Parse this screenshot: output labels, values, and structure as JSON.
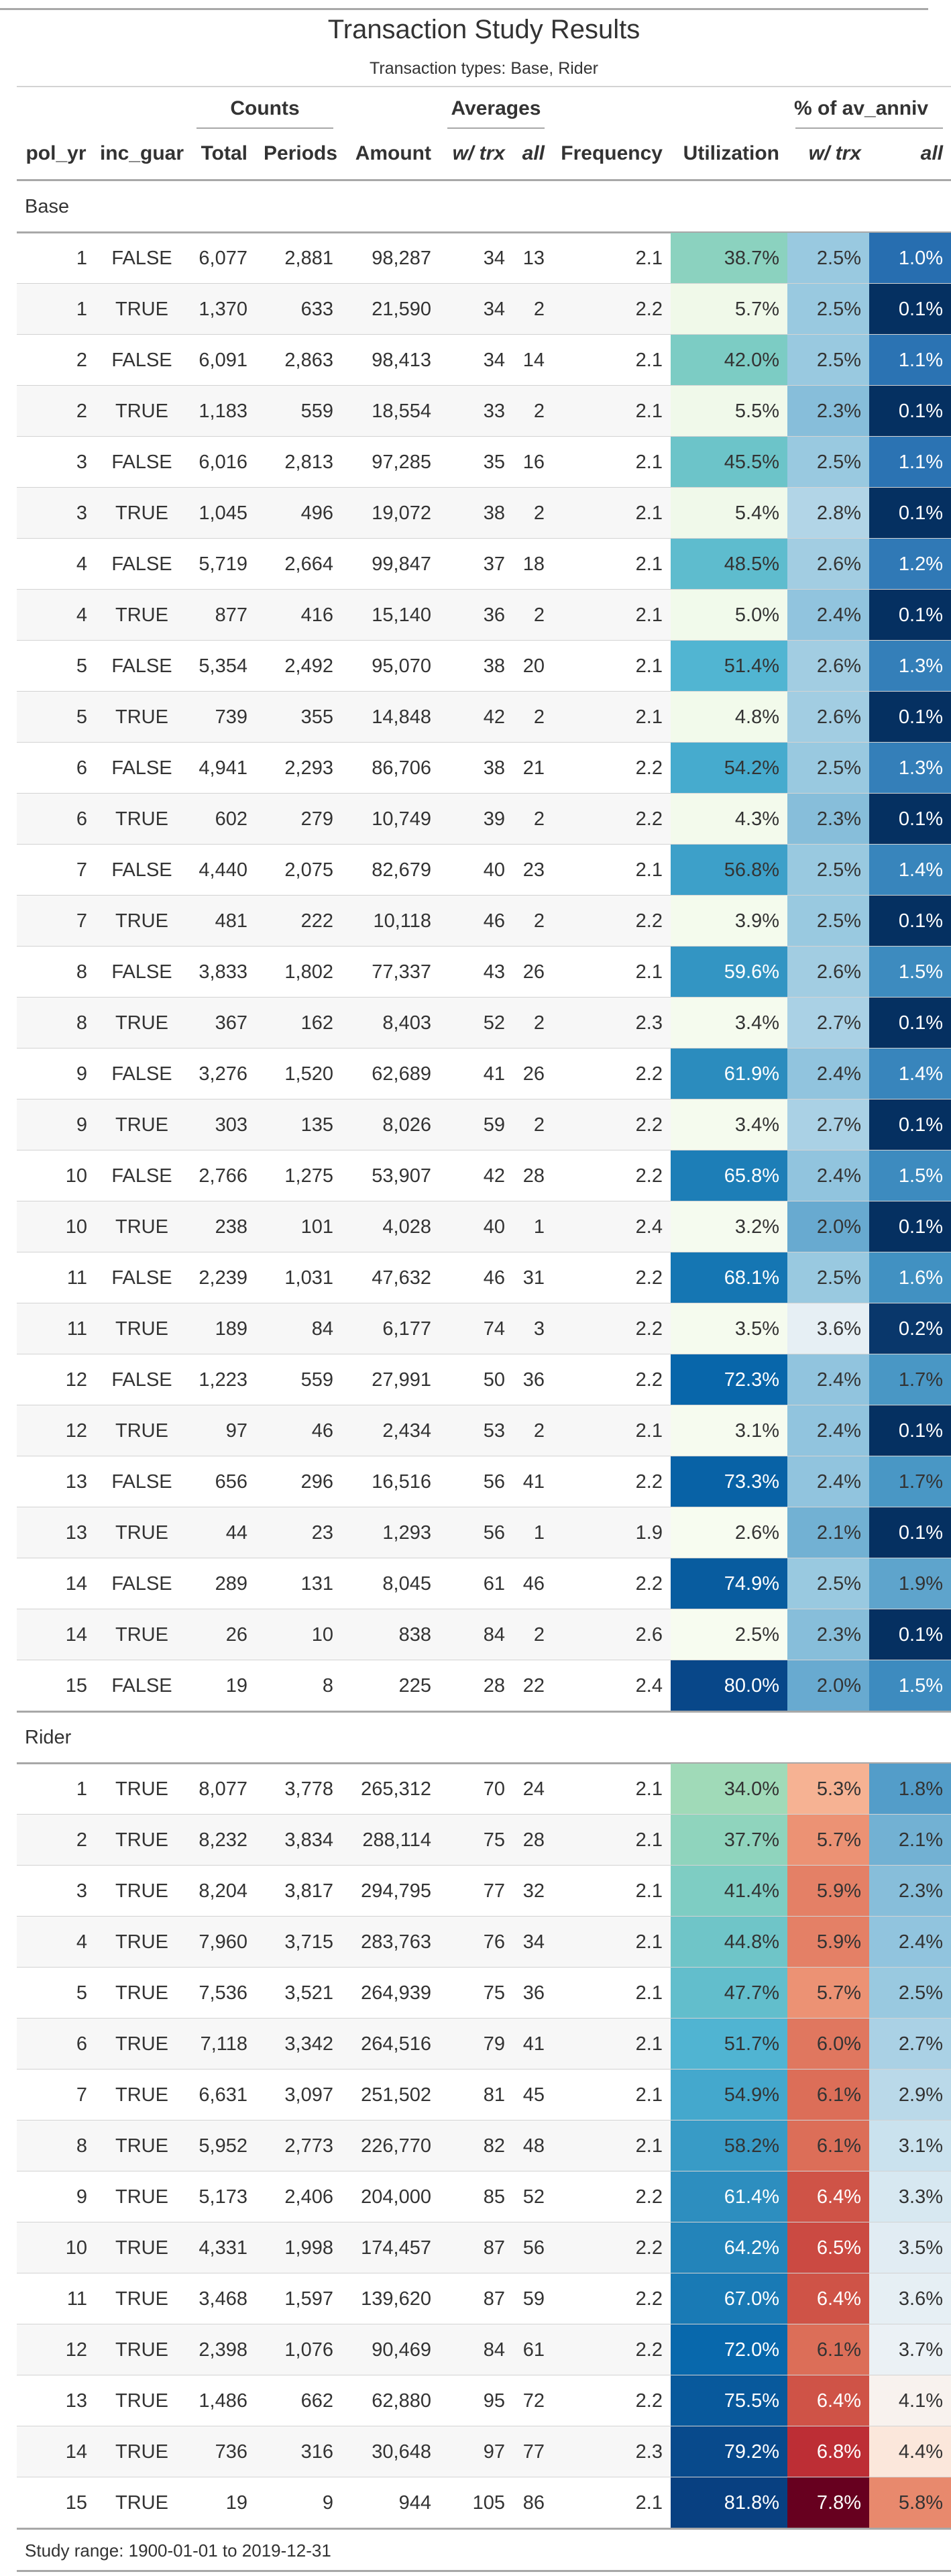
{
  "header": {
    "title": "Transaction Study Results",
    "subtitle": "Transaction types: Base, Rider"
  },
  "spanners": [
    "Counts",
    "Averages",
    "% of av_anniv"
  ],
  "columns": [
    "pol_yr",
    "inc_guar",
    "Total",
    "Periods",
    "Amount",
    "w/ trx",
    "all",
    "Frequency",
    "Utilization",
    "w/ trx",
    "all"
  ],
  "groups": [
    {
      "label": "Base",
      "rows": [
        [
          "1",
          "FALSE",
          "6,077",
          "2,881",
          "98,287",
          "34",
          "13",
          "2.1",
          "38.7%",
          "2.5%",
          "1.0%"
        ],
        [
          "1",
          "TRUE",
          "1,370",
          "633",
          "21,590",
          "34",
          "2",
          "2.2",
          "5.7%",
          "2.5%",
          "0.1%"
        ],
        [
          "2",
          "FALSE",
          "6,091",
          "2,863",
          "98,413",
          "34",
          "14",
          "2.1",
          "42.0%",
          "2.5%",
          "1.1%"
        ],
        [
          "2",
          "TRUE",
          "1,183",
          "559",
          "18,554",
          "33",
          "2",
          "2.1",
          "5.5%",
          "2.3%",
          "0.1%"
        ],
        [
          "3",
          "FALSE",
          "6,016",
          "2,813",
          "97,285",
          "35",
          "16",
          "2.1",
          "45.5%",
          "2.5%",
          "1.1%"
        ],
        [
          "3",
          "TRUE",
          "1,045",
          "496",
          "19,072",
          "38",
          "2",
          "2.1",
          "5.4%",
          "2.8%",
          "0.1%"
        ],
        [
          "4",
          "FALSE",
          "5,719",
          "2,664",
          "99,847",
          "37",
          "18",
          "2.1",
          "48.5%",
          "2.6%",
          "1.2%"
        ],
        [
          "4",
          "TRUE",
          "877",
          "416",
          "15,140",
          "36",
          "2",
          "2.1",
          "5.0%",
          "2.4%",
          "0.1%"
        ],
        [
          "5",
          "FALSE",
          "5,354",
          "2,492",
          "95,070",
          "38",
          "20",
          "2.1",
          "51.4%",
          "2.6%",
          "1.3%"
        ],
        [
          "5",
          "TRUE",
          "739",
          "355",
          "14,848",
          "42",
          "2",
          "2.1",
          "4.8%",
          "2.6%",
          "0.1%"
        ],
        [
          "6",
          "FALSE",
          "4,941",
          "2,293",
          "86,706",
          "38",
          "21",
          "2.2",
          "54.2%",
          "2.5%",
          "1.3%"
        ],
        [
          "6",
          "TRUE",
          "602",
          "279",
          "10,749",
          "39",
          "2",
          "2.2",
          "4.3%",
          "2.3%",
          "0.1%"
        ],
        [
          "7",
          "FALSE",
          "4,440",
          "2,075",
          "82,679",
          "40",
          "23",
          "2.1",
          "56.8%",
          "2.5%",
          "1.4%"
        ],
        [
          "7",
          "TRUE",
          "481",
          "222",
          "10,118",
          "46",
          "2",
          "2.2",
          "3.9%",
          "2.5%",
          "0.1%"
        ],
        [
          "8",
          "FALSE",
          "3,833",
          "1,802",
          "77,337",
          "43",
          "26",
          "2.1",
          "59.6%",
          "2.6%",
          "1.5%"
        ],
        [
          "8",
          "TRUE",
          "367",
          "162",
          "8,403",
          "52",
          "2",
          "2.3",
          "3.4%",
          "2.7%",
          "0.1%"
        ],
        [
          "9",
          "FALSE",
          "3,276",
          "1,520",
          "62,689",
          "41",
          "26",
          "2.2",
          "61.9%",
          "2.4%",
          "1.4%"
        ],
        [
          "9",
          "TRUE",
          "303",
          "135",
          "8,026",
          "59",
          "2",
          "2.2",
          "3.4%",
          "2.7%",
          "0.1%"
        ],
        [
          "10",
          "FALSE",
          "2,766",
          "1,275",
          "53,907",
          "42",
          "28",
          "2.2",
          "65.8%",
          "2.4%",
          "1.5%"
        ],
        [
          "10",
          "TRUE",
          "238",
          "101",
          "4,028",
          "40",
          "1",
          "2.4",
          "3.2%",
          "2.0%",
          "0.1%"
        ],
        [
          "11",
          "FALSE",
          "2,239",
          "1,031",
          "47,632",
          "46",
          "31",
          "2.2",
          "68.1%",
          "2.5%",
          "1.6%"
        ],
        [
          "11",
          "TRUE",
          "189",
          "84",
          "6,177",
          "74",
          "3",
          "2.2",
          "3.5%",
          "3.6%",
          "0.2%"
        ],
        [
          "12",
          "FALSE",
          "1,223",
          "559",
          "27,991",
          "50",
          "36",
          "2.2",
          "72.3%",
          "2.4%",
          "1.7%"
        ],
        [
          "12",
          "TRUE",
          "97",
          "46",
          "2,434",
          "53",
          "2",
          "2.1",
          "3.1%",
          "2.4%",
          "0.1%"
        ],
        [
          "13",
          "FALSE",
          "656",
          "296",
          "16,516",
          "56",
          "41",
          "2.2",
          "73.3%",
          "2.4%",
          "1.7%"
        ],
        [
          "13",
          "TRUE",
          "44",
          "23",
          "1,293",
          "56",
          "1",
          "1.9",
          "2.6%",
          "2.1%",
          "0.1%"
        ],
        [
          "14",
          "FALSE",
          "289",
          "131",
          "8,045",
          "61",
          "46",
          "2.2",
          "74.9%",
          "2.5%",
          "1.9%"
        ],
        [
          "14",
          "TRUE",
          "26",
          "10",
          "838",
          "84",
          "2",
          "2.6",
          "2.5%",
          "2.3%",
          "0.1%"
        ],
        [
          "15",
          "FALSE",
          "19",
          "8",
          "225",
          "28",
          "22",
          "2.4",
          "80.0%",
          "2.0%",
          "1.5%"
        ]
      ]
    },
    {
      "label": "Rider",
      "rows": [
        [
          "1",
          "TRUE",
          "8,077",
          "3,778",
          "265,312",
          "70",
          "24",
          "2.1",
          "34.0%",
          "5.3%",
          "1.8%"
        ],
        [
          "2",
          "TRUE",
          "8,232",
          "3,834",
          "288,114",
          "75",
          "28",
          "2.1",
          "37.7%",
          "5.7%",
          "2.1%"
        ],
        [
          "3",
          "TRUE",
          "8,204",
          "3,817",
          "294,795",
          "77",
          "32",
          "2.1",
          "41.4%",
          "5.9%",
          "2.3%"
        ],
        [
          "4",
          "TRUE",
          "7,960",
          "3,715",
          "283,763",
          "76",
          "34",
          "2.1",
          "44.8%",
          "5.9%",
          "2.4%"
        ],
        [
          "5",
          "TRUE",
          "7,536",
          "3,521",
          "264,939",
          "75",
          "36",
          "2.1",
          "47.7%",
          "5.7%",
          "2.5%"
        ],
        [
          "6",
          "TRUE",
          "7,118",
          "3,342",
          "264,516",
          "79",
          "41",
          "2.1",
          "51.7%",
          "6.0%",
          "2.7%"
        ],
        [
          "7",
          "TRUE",
          "6,631",
          "3,097",
          "251,502",
          "81",
          "45",
          "2.1",
          "54.9%",
          "6.1%",
          "2.9%"
        ],
        [
          "8",
          "TRUE",
          "5,952",
          "2,773",
          "226,770",
          "82",
          "48",
          "2.1",
          "58.2%",
          "6.1%",
          "3.1%"
        ],
        [
          "9",
          "TRUE",
          "5,173",
          "2,406",
          "204,000",
          "85",
          "52",
          "2.2",
          "61.4%",
          "6.4%",
          "3.3%"
        ],
        [
          "10",
          "TRUE",
          "4,331",
          "1,998",
          "174,457",
          "87",
          "56",
          "2.2",
          "64.2%",
          "6.5%",
          "3.5%"
        ],
        [
          "11",
          "TRUE",
          "3,468",
          "1,597",
          "139,620",
          "87",
          "59",
          "2.2",
          "67.0%",
          "6.4%",
          "3.6%"
        ],
        [
          "12",
          "TRUE",
          "2,398",
          "1,076",
          "90,469",
          "84",
          "61",
          "2.2",
          "72.0%",
          "6.1%",
          "3.7%"
        ],
        [
          "13",
          "TRUE",
          "1,486",
          "662",
          "62,880",
          "95",
          "72",
          "2.2",
          "75.5%",
          "6.4%",
          "4.1%"
        ],
        [
          "14",
          "TRUE",
          "736",
          "316",
          "30,648",
          "97",
          "77",
          "2.3",
          "79.2%",
          "6.8%",
          "4.4%"
        ],
        [
          "15",
          "TRUE",
          "19",
          "9",
          "944",
          "105",
          "86",
          "2.1",
          "81.8%",
          "7.8%",
          "5.8%"
        ]
      ]
    }
  ],
  "footer": "Study range: 1900-01-01 to 2019-12-31"
}
